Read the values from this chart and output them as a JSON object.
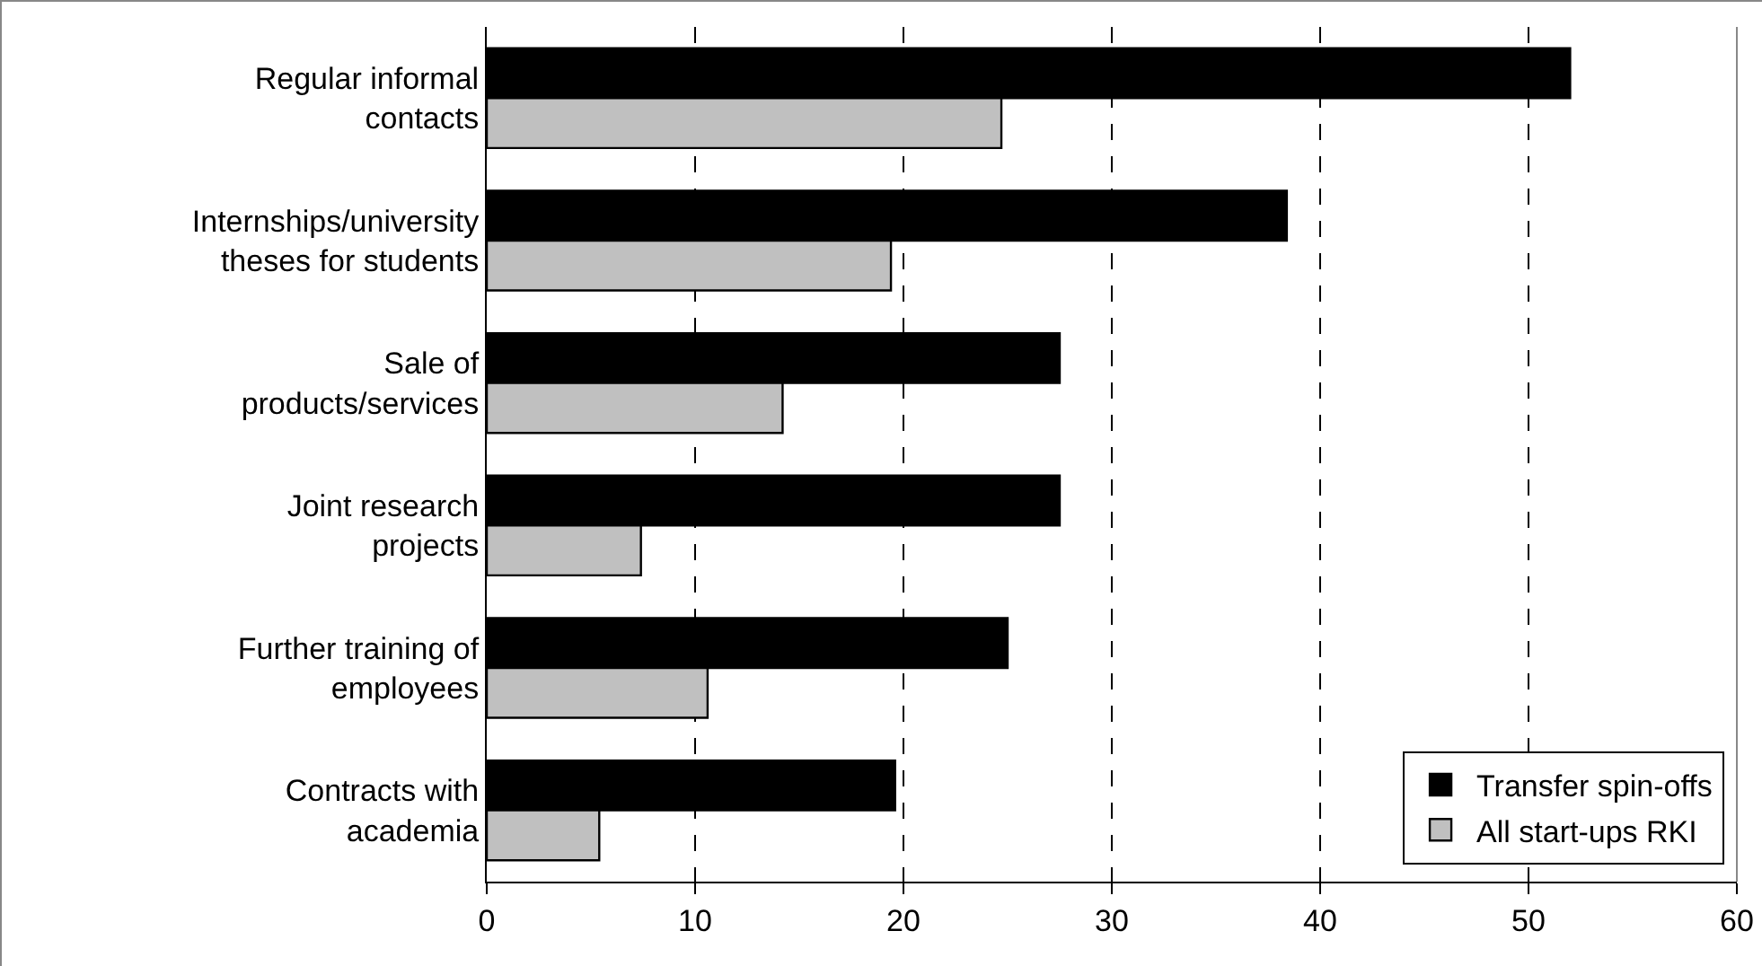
{
  "chart_data": {
    "type": "bar",
    "orientation": "horizontal",
    "categories": [
      "Regular informal\ncontacts",
      "Internships/university\ntheses for students",
      "Sale of\nproducts/services",
      "Joint research\nprojects",
      "Further training of\nemployees",
      "Contracts with\nacademia"
    ],
    "series": [
      {
        "name": "Transfer spin-offs",
        "color": "#000000",
        "values": [
          52.0,
          38.4,
          27.5,
          27.5,
          25.0,
          19.6
        ]
      },
      {
        "name": "All start-ups RKI",
        "color": "#c0c0c0",
        "values": [
          24.7,
          19.4,
          14.2,
          7.4,
          10.6,
          5.4
        ]
      }
    ],
    "xlim": [
      0,
      60
    ],
    "xticks": [
      0,
      10,
      20,
      30,
      40,
      50,
      60
    ],
    "grid": "x",
    "legend": "bottom right"
  }
}
